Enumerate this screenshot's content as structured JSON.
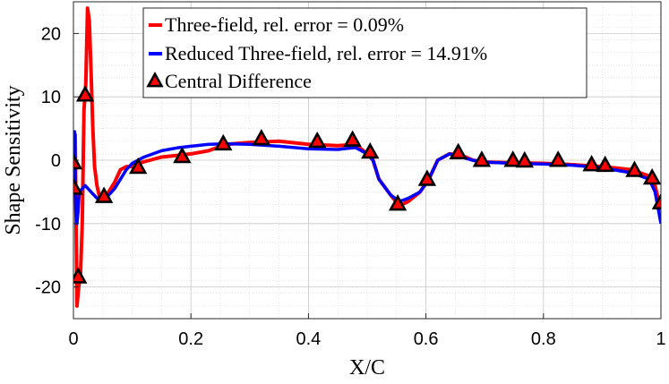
{
  "chart_data": {
    "type": "line",
    "xlabel": "X/C",
    "ylabel": "Shape Sensitivity",
    "xlim": [
      0,
      1
    ],
    "ylim": [
      -25,
      25
    ],
    "x_ticks": [
      0,
      0.2,
      0.4,
      0.6,
      0.8,
      1
    ],
    "x_tick_labels": [
      "0",
      "0.2",
      "0.4",
      "0.6",
      "0.8",
      "1"
    ],
    "y_ticks": [
      20,
      10,
      0,
      -10,
      -20
    ],
    "y_tick_labels": [
      "20",
      "10",
      "0",
      "-10",
      "-20"
    ],
    "grid": true,
    "minor_grid": true,
    "legend_position": "top-center",
    "series": [
      {
        "name": "Three-field, rel. error = 0.09%",
        "color": "#ff0000",
        "style": "line",
        "x": [
          0.0,
          0.003,
          0.006,
          0.009,
          0.012,
          0.015,
          0.018,
          0.021,
          0.024,
          0.027,
          0.03,
          0.033,
          0.036,
          0.04,
          0.045,
          0.05,
          0.055,
          0.06,
          0.07,
          0.08,
          0.09,
          0.1,
          0.11,
          0.13,
          0.15,
          0.18,
          0.2,
          0.23,
          0.26,
          0.3,
          0.35,
          0.4,
          0.45,
          0.48,
          0.5,
          0.51,
          0.52,
          0.54,
          0.555,
          0.57,
          0.59,
          0.605,
          0.62,
          0.64,
          0.66,
          0.68,
          0.7,
          0.75,
          0.8,
          0.85,
          0.9,
          0.95,
          0.98,
          0.99,
          1.0
        ],
        "y": [
          -3,
          4,
          -23,
          -20,
          -18,
          -10,
          8,
          12,
          24,
          22,
          14,
          5,
          -1,
          -4,
          -6,
          -6,
          -6,
          -5,
          -3.5,
          -1.5,
          -1,
          -1,
          -0.5,
          0,
          0.5,
          0.8,
          1,
          1.5,
          2.5,
          2.8,
          3,
          2.5,
          2.3,
          2.5,
          1,
          0,
          -3,
          -5.5,
          -7.2,
          -6.5,
          -5,
          -3,
          0,
          1,
          0.8,
          0,
          -0.3,
          -0.4,
          -0.5,
          -0.7,
          -1,
          -1.5,
          -2.5,
          -4,
          -8
        ]
      },
      {
        "name": "Reduced Three-field, rel. error = 14.91%",
        "color": "#0000ff",
        "style": "line",
        "x": [
          0.0,
          0.002,
          0.004,
          0.006,
          0.008,
          0.01,
          0.02,
          0.03,
          0.04,
          0.05,
          0.055,
          0.06,
          0.07,
          0.08,
          0.09,
          0.1,
          0.12,
          0.15,
          0.18,
          0.2,
          0.23,
          0.26,
          0.3,
          0.35,
          0.4,
          0.45,
          0.48,
          0.5,
          0.51,
          0.52,
          0.54,
          0.555,
          0.57,
          0.59,
          0.605,
          0.62,
          0.64,
          0.66,
          0.68,
          0.7,
          0.75,
          0.8,
          0.85,
          0.9,
          0.95,
          0.98,
          0.99,
          1.0
        ],
        "y": [
          -3,
          4.5,
          -8,
          -10,
          -8,
          -5,
          -4,
          -5,
          -6,
          -6,
          -6,
          -5.5,
          -4.5,
          -3,
          -1.5,
          -0.5,
          0.5,
          1.5,
          2,
          2.2,
          2.5,
          2.6,
          2.5,
          2.2,
          1.8,
          1.7,
          2,
          1,
          0,
          -3,
          -5.5,
          -6.5,
          -6,
          -5,
          -3,
          0,
          1,
          0.5,
          0,
          -0.3,
          -0.5,
          -0.6,
          -0.8,
          -1.2,
          -2,
          -3,
          -5,
          -10
        ]
      },
      {
        "name": "Central Difference",
        "color": "#000000",
        "marker_fill": "#ff0000",
        "style": "marker",
        "x": [
          0.0,
          0.001,
          0.008,
          0.02,
          0.052,
          0.11,
          0.185,
          0.255,
          0.32,
          0.415,
          0.475,
          0.505,
          0.552,
          0.602,
          0.655,
          0.695,
          0.748,
          0.768,
          0.825,
          0.882,
          0.905,
          0.955,
          0.985,
          1.0
        ],
        "y": [
          -0.5,
          -4.5,
          -18.5,
          10.2,
          -5.8,
          -1.2,
          0.5,
          2.5,
          3.3,
          2.9,
          3.1,
          1.2,
          -7,
          -3.1,
          1.1,
          -0.1,
          -0.1,
          -0.2,
          -0.1,
          -0.8,
          -0.9,
          -1.7,
          -2.9,
          -6.8
        ]
      }
    ]
  }
}
